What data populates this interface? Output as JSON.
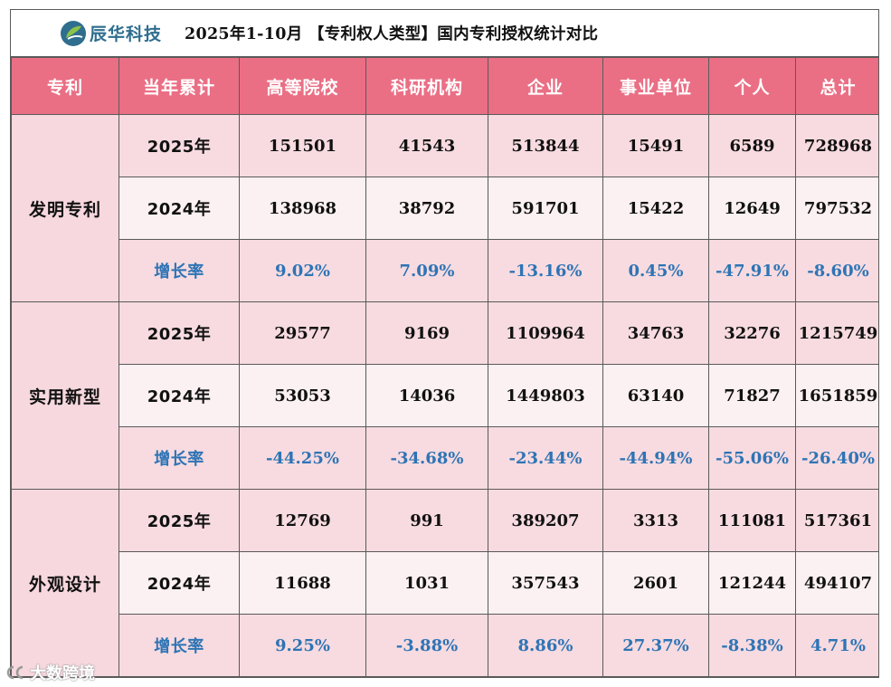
{
  "header": {
    "logo_name": "辰华科技",
    "title": "2025年1-10月 【专利权人类型】国内专利授权统计对比"
  },
  "columns": [
    "专利",
    "当年累计",
    "高等院校",
    "科研机构",
    "企业",
    "事业单位",
    "个人",
    "总计"
  ],
  "groups": [
    {
      "type": "发明专利",
      "rows": [
        {
          "label": "2025年",
          "values": [
            "151501",
            "41543",
            "513844",
            "15491",
            "6589",
            "728968"
          ]
        },
        {
          "label": "2024年",
          "values": [
            "138968",
            "38792",
            "591701",
            "15422",
            "12649",
            "797532"
          ]
        },
        {
          "label": "增长率",
          "values": [
            "9.02%",
            "7.09%",
            "-13.16%",
            "0.45%",
            "-47.91%",
            "-8.60%"
          ]
        }
      ]
    },
    {
      "type": "实用新型",
      "rows": [
        {
          "label": "2025年",
          "values": [
            "29577",
            "9169",
            "1109964",
            "34763",
            "32276",
            "1215749"
          ]
        },
        {
          "label": "2024年",
          "values": [
            "53053",
            "14036",
            "1449803",
            "63140",
            "71827",
            "1651859"
          ]
        },
        {
          "label": "增长率",
          "values": [
            "-44.25%",
            "-34.68%",
            "-23.44%",
            "-44.94%",
            "-55.06%",
            "-26.40%"
          ]
        }
      ]
    },
    {
      "type": "外观设计",
      "rows": [
        {
          "label": "2025年",
          "values": [
            "12769",
            "991",
            "389207",
            "3313",
            "111081",
            "517361"
          ]
        },
        {
          "label": "2024年",
          "values": [
            "11688",
            "1031",
            "357543",
            "2601",
            "121244",
            "494107"
          ]
        },
        {
          "label": "增长率",
          "values": [
            "9.25%",
            "-3.88%",
            "8.86%",
            "27.37%",
            "-8.38%",
            "4.71%"
          ]
        }
      ]
    }
  ],
  "watermark": "大数跨境",
  "colors": {
    "header_bg": "#ea6f85",
    "growth_text": "#2e74b5",
    "row_light": "#fbf0f2",
    "row_dark": "#f7dbe0"
  }
}
